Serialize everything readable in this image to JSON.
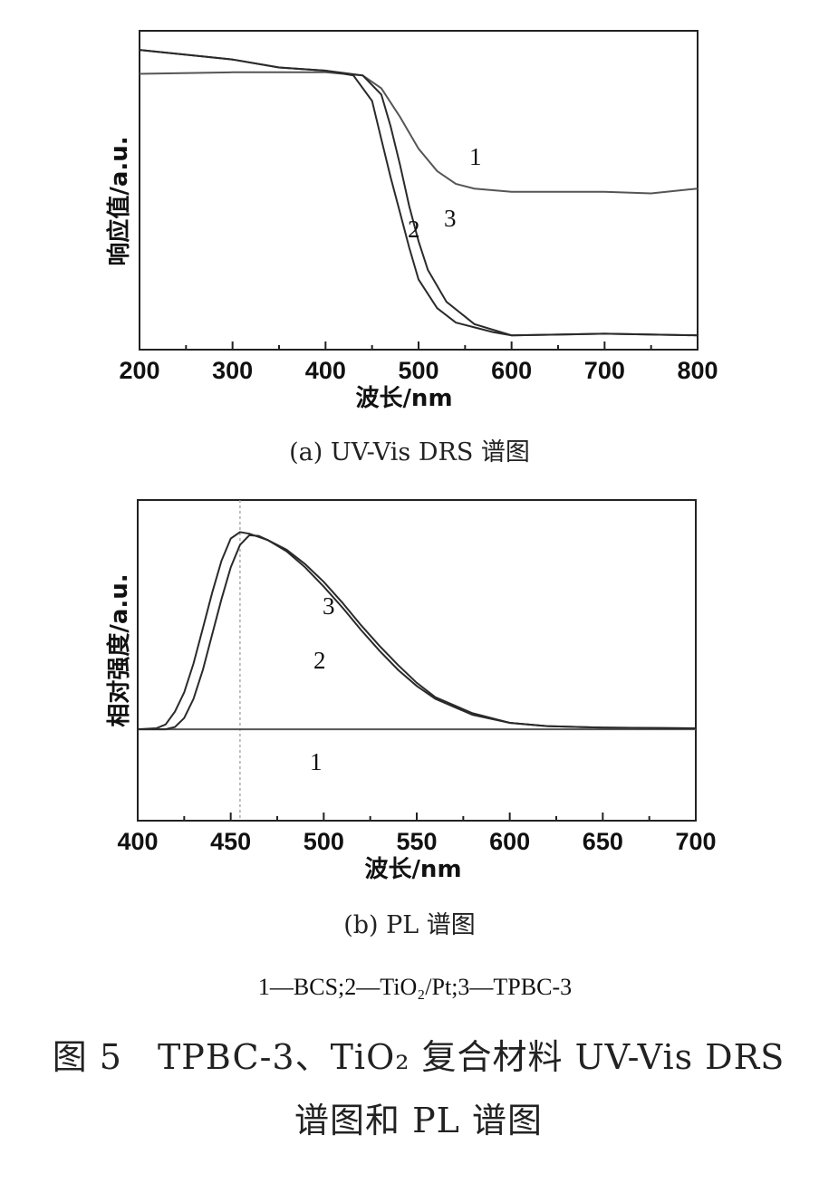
{
  "chart_data": [
    {
      "type": "line",
      "xlabel": "波长/nm",
      "ylabel": "响应值/a.u.",
      "xlim": [
        200,
        800
      ],
      "ylim": [
        0,
        1
      ],
      "xticks": [
        200,
        300,
        400,
        500,
        600,
        700,
        800
      ],
      "tick_labels": [
        "200",
        "300",
        "400",
        "500",
        "600",
        "700",
        "800"
      ],
      "caption": "(a) UV-Vis DRS 谱图",
      "series": [
        {
          "name": "1",
          "x": [
            200,
            300,
            400,
            440,
            460,
            480,
            500,
            520,
            540,
            560,
            600,
            700,
            750,
            800
          ],
          "y": [
            0.865,
            0.87,
            0.87,
            0.86,
            0.82,
            0.73,
            0.63,
            0.56,
            0.52,
            0.505,
            0.495,
            0.495,
            0.49,
            0.505
          ]
        },
        {
          "name": "2",
          "x": [
            200,
            300,
            350,
            400,
            430,
            450,
            460,
            470,
            480,
            490,
            500,
            520,
            540,
            560,
            580,
            600,
            700,
            800
          ],
          "y": [
            0.94,
            0.91,
            0.885,
            0.875,
            0.86,
            0.78,
            0.66,
            0.54,
            0.43,
            0.32,
            0.22,
            0.13,
            0.085,
            0.07,
            0.055,
            0.045,
            0.05,
            0.045
          ]
        },
        {
          "name": "3",
          "x": [
            200,
            300,
            350,
            400,
            440,
            460,
            470,
            480,
            490,
            500,
            510,
            530,
            560,
            600,
            700,
            800
          ],
          "y": [
            0.94,
            0.91,
            0.885,
            0.875,
            0.86,
            0.8,
            0.7,
            0.58,
            0.45,
            0.34,
            0.25,
            0.15,
            0.08,
            0.045,
            0.05,
            0.045
          ]
        }
      ],
      "series_labels": [
        "1",
        "2",
        "3"
      ]
    },
    {
      "type": "line",
      "xlabel": "波长/nm",
      "ylabel": "相对强度/a.u.",
      "xlim": [
        400,
        700
      ],
      "ylim": [
        0,
        1
      ],
      "xticks": [
        400,
        450,
        500,
        550,
        600,
        650,
        700
      ],
      "tick_labels": [
        "400",
        "450",
        "500",
        "550",
        "600",
        "650",
        "700"
      ],
      "reference_line_x": 455,
      "caption": "(b) PL 谱图",
      "series": [
        {
          "name": "1",
          "x": [
            400,
            450,
            500,
            550,
            600,
            650,
            700
          ],
          "y": [
            0.285,
            0.285,
            0.285,
            0.285,
            0.285,
            0.285,
            0.285
          ]
        },
        {
          "name": "2",
          "x": [
            400,
            410,
            415,
            420,
            425,
            430,
            435,
            440,
            445,
            450,
            455,
            460,
            470,
            480,
            490,
            500,
            510,
            520,
            530,
            540,
            550,
            560,
            580,
            600,
            620,
            650,
            700
          ],
          "y": [
            0.285,
            0.288,
            0.3,
            0.34,
            0.4,
            0.49,
            0.6,
            0.71,
            0.81,
            0.88,
            0.9,
            0.895,
            0.875,
            0.84,
            0.79,
            0.73,
            0.665,
            0.595,
            0.53,
            0.47,
            0.42,
            0.38,
            0.33,
            0.305,
            0.295,
            0.29,
            0.288
          ]
        },
        {
          "name": "3",
          "x": [
            400,
            415,
            420,
            425,
            430,
            435,
            440,
            445,
            450,
            455,
            460,
            465,
            470,
            480,
            490,
            500,
            510,
            520,
            530,
            540,
            550,
            560,
            580,
            600,
            620,
            650,
            700
          ],
          "y": [
            0.285,
            0.285,
            0.292,
            0.32,
            0.38,
            0.47,
            0.58,
            0.69,
            0.79,
            0.86,
            0.89,
            0.888,
            0.875,
            0.845,
            0.8,
            0.745,
            0.68,
            0.61,
            0.545,
            0.485,
            0.43,
            0.385,
            0.335,
            0.305,
            0.295,
            0.29,
            0.288
          ]
        }
      ],
      "series_labels": [
        "1",
        "2",
        "3"
      ]
    }
  ],
  "legend_text": "1—BCS;2—TiO₂/Pt;3—TPBC-3",
  "figure_caption_line1": "图 5　TPBC-3、TiO₂ 复合材料 UV-Vis DRS",
  "figure_caption_line2": "谱图和 PL 谱图",
  "colors": {
    "series1": "#555555",
    "series2": "#2a2a2a",
    "series3": "#2a2a2a",
    "axis": "#222222"
  }
}
